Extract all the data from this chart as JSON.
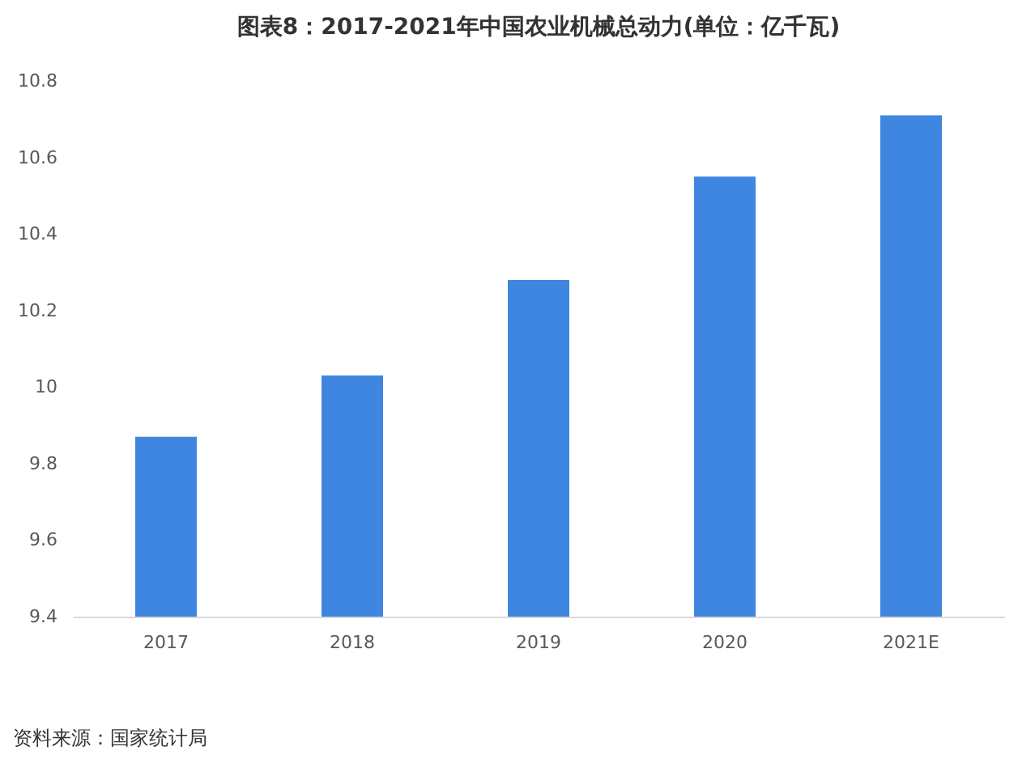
{
  "chart_data": {
    "type": "bar",
    "title": "图表8：2017-2021年中国农业机械总动力(单位：亿千瓦)",
    "categories": [
      "2017",
      "2018",
      "2019",
      "2020",
      "2021E"
    ],
    "values": [
      9.87,
      10.03,
      10.28,
      10.55,
      10.71
    ],
    "color": "#3f86e0",
    "ylim": [
      9.4,
      10.8
    ],
    "yticks": [
      9.4,
      9.6,
      9.8,
      10,
      10.2,
      10.4,
      10.6,
      10.8
    ],
    "annotations": [
      "资料来源：国家统计局"
    ]
  }
}
